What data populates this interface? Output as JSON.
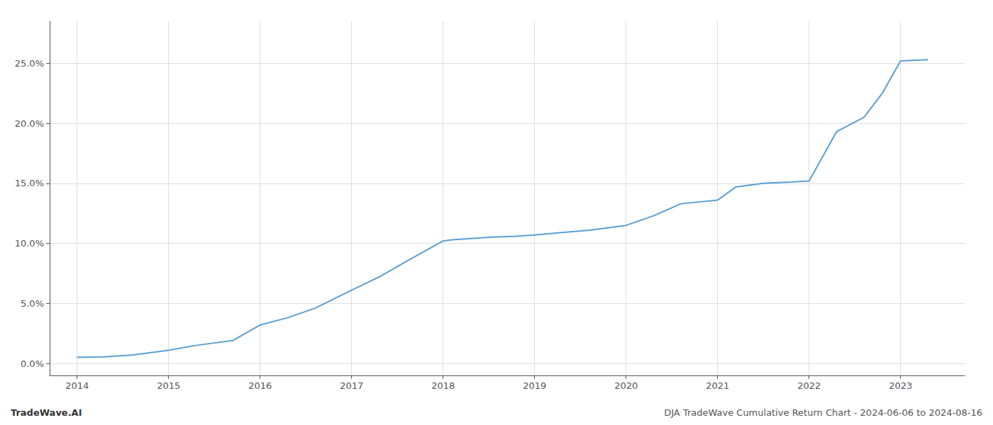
{
  "chart_data": {
    "type": "line",
    "title": "DJA TradeWave Cumulative Return Chart - 2024-06-06 to 2024-08-16",
    "annotations": [
      "TradeWave.AI"
    ],
    "x": [
      2014.0,
      2014.3,
      2014.6,
      2015.0,
      2015.3,
      2015.7,
      2016.0,
      2016.3,
      2016.6,
      2017.0,
      2017.3,
      2017.6,
      2018.0,
      2018.1,
      2018.5,
      2018.8,
      2019.0,
      2019.3,
      2019.6,
      2020.0,
      2020.3,
      2020.6,
      2021.0,
      2021.2,
      2021.5,
      2021.8,
      2022.0,
      2022.3,
      2022.6,
      2022.8,
      2023.0,
      2023.3
    ],
    "values": [
      0.5,
      0.55,
      0.7,
      1.1,
      1.5,
      1.9,
      3.2,
      3.8,
      4.6,
      6.1,
      7.2,
      8.5,
      10.2,
      10.3,
      10.5,
      10.6,
      10.7,
      10.9,
      11.1,
      11.5,
      12.3,
      13.3,
      13.6,
      14.7,
      15.0,
      15.1,
      15.2,
      19.3,
      20.5,
      22.5,
      25.2,
      25.3
    ],
    "color": "#5a9fd4",
    "xlim": [
      2013.7,
      2023.7
    ],
    "xticks": [
      2014,
      2015,
      2016,
      2017,
      2018,
      2019,
      2020,
      2021,
      2022,
      2023
    ],
    "ylim": [
      -1.0,
      28.5
    ],
    "yticks": [
      {
        "value": 0.0,
        "label": "0.0%"
      },
      {
        "value": 5.0,
        "label": "5.0%"
      },
      {
        "value": 10.0,
        "label": "10.0%"
      },
      {
        "value": 15.0,
        "label": "15.0%"
      },
      {
        "value": 20.0,
        "label": "20.0%"
      },
      {
        "value": 25.0,
        "label": "25.0%"
      }
    ],
    "grid": true
  }
}
